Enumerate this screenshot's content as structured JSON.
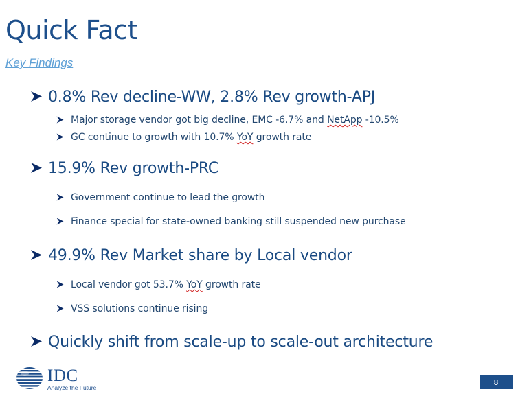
{
  "slide": {
    "title": "Quick Fact",
    "subtitle": "Key Findings",
    "bullets": [
      {
        "text": "0.8% Rev decline-WW, 2.8% Rev growth-APJ",
        "subs": [
          {
            "pre": "Major storage vendor got big decline, EMC -6.7% and ",
            "mark": "NetApp",
            "post": " -10.5%"
          },
          {
            "pre": "GC continue to growth with 10.7% ",
            "mark": "YoY",
            "post": " growth rate"
          }
        ]
      },
      {
        "text": "15.9% Rev growth-PRC",
        "subs": [
          {
            "pre": "Government continue to lead the growth"
          },
          {
            "pre": "Finance special for state-owned banking still suspended new purchase"
          }
        ]
      },
      {
        "text": "49.9% Rev Market share by Local vendor",
        "subs": [
          {
            "pre": "Local vendor got 53.7% ",
            "mark": "YoY",
            "post": " growth rate"
          },
          {
            "pre": "VSS solutions continue rising"
          }
        ]
      },
      {
        "text": "Quickly shift from scale-up to scale-out architecture"
      }
    ],
    "page_number": "8"
  },
  "logo": {
    "name": "IDC",
    "tagline": "Analyze the Future"
  },
  "colors": {
    "title": "#1d4f8b",
    "subtitle": "#5ea0d6",
    "main_bullet": "#1a4a82",
    "sub_bullet": "#23476f",
    "arrow_fill": "#0a2a66",
    "spellcheck": "#d02020",
    "page_badge": "#1d4f8b"
  },
  "icons": {
    "main_bullet": "arrow-bullet-icon",
    "sub_bullet": "small-arrow-bullet-icon",
    "logo": "idc-globe-icon"
  }
}
